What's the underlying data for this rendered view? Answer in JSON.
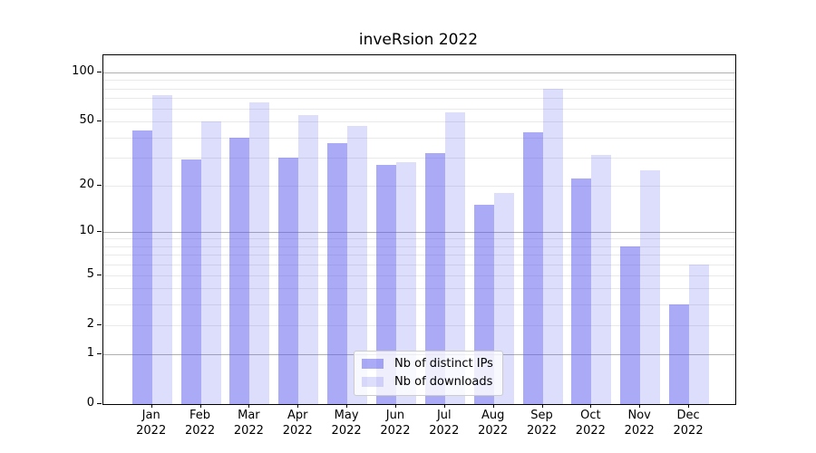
{
  "chart_data": {
    "type": "bar",
    "title": "inveRsion 2022",
    "categories": [
      "Jan",
      "Feb",
      "Mar",
      "Apr",
      "May",
      "Jun",
      "Jul",
      "Aug",
      "Sep",
      "Oct",
      "Nov",
      "Dec"
    ],
    "year_label": "2022",
    "series": [
      {
        "name": "Nb of distinct IPs",
        "color": "#5555ee80",
        "values": [
          44,
          29,
          40,
          30,
          37,
          27,
          32,
          15,
          43,
          22,
          8,
          3
        ]
      },
      {
        "name": "Nb of downloads",
        "color": "#5555ee33",
        "values": [
          73,
          50,
          66,
          55,
          47,
          28,
          57,
          18,
          80,
          31,
          25,
          6
        ]
      }
    ],
    "xlabel": "",
    "ylabel": "",
    "yscale": "log1p",
    "ylim": [
      0,
      128
    ],
    "yticks": [
      0,
      1,
      2,
      5,
      10,
      20,
      50,
      100
    ],
    "grid_major": [
      1,
      10,
      100
    ],
    "grid_minor": [
      2,
      3,
      4,
      5,
      6,
      7,
      8,
      9,
      20,
      30,
      40,
      50,
      60,
      70,
      80,
      90
    ],
    "grid": "on",
    "legend_position": "bottom-center-inside"
  }
}
